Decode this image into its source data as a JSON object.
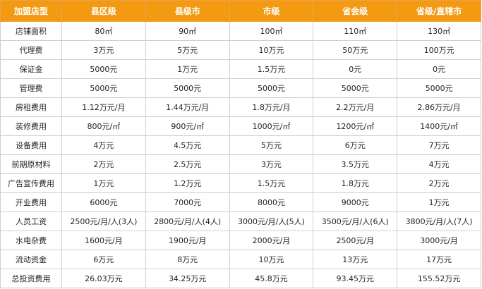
{
  "table": {
    "headers": [
      "加盟店型",
      "县区级",
      "县级市",
      "市级",
      "省会级",
      "省级/直辖市"
    ],
    "rows": [
      [
        "店铺面积",
        "80㎡",
        "90㎡",
        "100㎡",
        "110㎡",
        "130㎡"
      ],
      [
        "代理费",
        "3万元",
        "5万元",
        "10万元",
        "50万元",
        "100万元"
      ],
      [
        "保证金",
        "5000元",
        "1万元",
        "1.5万元",
        "0元",
        "0元"
      ],
      [
        "管理费",
        "5000元",
        "5000元",
        "5000元",
        "5000元",
        "5000元"
      ],
      [
        "房租费用",
        "1.12万元/月",
        "1.44万元/月",
        "1.8万元/月",
        "2.2万元/月",
        "2.86万元/月"
      ],
      [
        "装修费用",
        "800元/㎡",
        "900元/㎡",
        "1000元/㎡",
        "1200元/㎡",
        "1400元/㎡"
      ],
      [
        "设备费用",
        "4万元",
        "4.5万元",
        "5万元",
        "6万元",
        "7万元"
      ],
      [
        "前期原材料",
        "2万元",
        "2.5万元",
        "3万元",
        "3.5万元",
        "4万元"
      ],
      [
        "广告宣传费用",
        "1万元",
        "1.2万元",
        "1.5万元",
        "1.8万元",
        "2万元"
      ],
      [
        "开业费用",
        "6000元",
        "7000元",
        "8000元",
        "9000元",
        "1万元"
      ],
      [
        "人员工资",
        "2500元/月/人(3人)",
        "2800元/月/人(4人)",
        "3000元/月/人(5人)",
        "3500元/月/人(6人)",
        "3800元/月/人(7人)"
      ],
      [
        "水电杂费",
        "1600元/月",
        "1900元/月",
        "2000元/月",
        "2500元/月",
        "3000元/月"
      ],
      [
        "流动资金",
        "6万元",
        "8万元",
        "10万元",
        "13万元",
        "17万元"
      ],
      [
        "总投资费用",
        "26.03万元",
        "34.25万元",
        "45.8万元",
        "93.45万元",
        "155.52万元"
      ]
    ]
  }
}
